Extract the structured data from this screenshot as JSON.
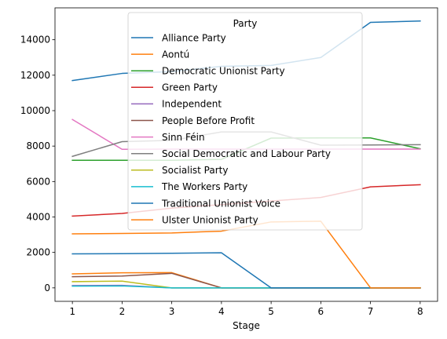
{
  "chart_data": {
    "type": "line",
    "xlabel": "Stage",
    "ylabel": "",
    "title": "",
    "x": [
      1,
      2,
      3,
      4,
      5,
      6,
      7,
      8
    ],
    "xlim": [
      0.65,
      8.35
    ],
    "ylim": [
      -760,
      15800
    ],
    "x_ticks": [
      1,
      2,
      3,
      4,
      5,
      6,
      7,
      8
    ],
    "y_ticks": [
      0,
      2000,
      4000,
      6000,
      8000,
      10000,
      12000,
      14000
    ],
    "grid": false,
    "legend": {
      "title": "Party",
      "placement": "upper-center"
    },
    "series": [
      {
        "name": "Alliance Party",
        "color": "#1f77b4",
        "values": [
          11700,
          12100,
          12200,
          12500,
          12550,
          13000,
          14980,
          15060
        ]
      },
      {
        "name": "Aontú",
        "color": "#ff7f0e",
        "values": [
          790,
          850,
          860,
          0,
          0,
          0,
          0,
          0
        ]
      },
      {
        "name": "Democratic Unionist Party",
        "color": "#2ca02c",
        "values": [
          7200,
          7200,
          7200,
          7250,
          8450,
          8460,
          8460,
          7850
        ]
      },
      {
        "name": "Green Party",
        "color": "#d62728",
        "values": [
          4050,
          4200,
          4500,
          4700,
          4900,
          5100,
          5700,
          5820
        ]
      },
      {
        "name": "Independent",
        "color": "#9467bd",
        "values": [
          130,
          140,
          0,
          0,
          0,
          0,
          0,
          0
        ]
      },
      {
        "name": "People Before Profit",
        "color": "#8c564b",
        "values": [
          630,
          670,
          820,
          0,
          0,
          0,
          0,
          0
        ]
      },
      {
        "name": "Sinn Féin",
        "color": "#e377c2",
        "values": [
          9500,
          7820,
          7830,
          7830,
          7830,
          7830,
          7830,
          7830
        ]
      },
      {
        "name": "Social Democratic and Labour Party",
        "color": "#7f7f7f",
        "values": [
          7420,
          8250,
          8320,
          8800,
          8800,
          8050,
          8060,
          8080
        ]
      },
      {
        "name": "Socialist Party",
        "color": "#bcbd22",
        "values": [
          350,
          380,
          0,
          0,
          0,
          0,
          0,
          0
        ]
      },
      {
        "name": "The Workers Party",
        "color": "#17becf",
        "values": [
          100,
          110,
          0,
          0,
          0,
          0,
          0,
          0
        ]
      },
      {
        "name": "Traditional Unionist Voice",
        "color": "#1f77b4",
        "values": [
          1920,
          1930,
          1950,
          1980,
          0,
          0,
          0,
          0
        ]
      },
      {
        "name": "Ulster Unionist Party",
        "color": "#ff7f0e",
        "values": [
          3050,
          3070,
          3100,
          3200,
          3720,
          3760,
          0,
          0
        ]
      }
    ]
  }
}
